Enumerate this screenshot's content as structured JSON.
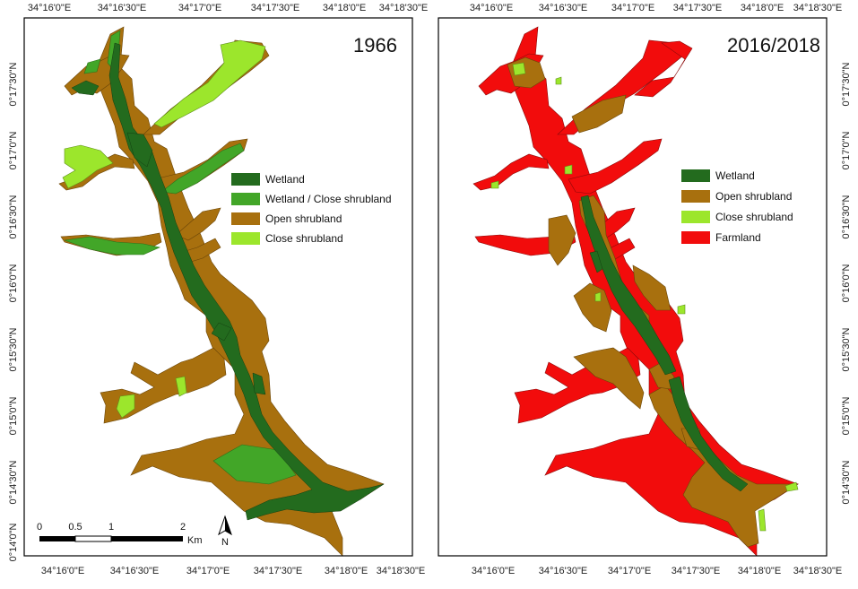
{
  "colors": {
    "wetland": "#236b1e",
    "wetland_close_shrubland": "#42a628",
    "open_shrubland": "#a8700e",
    "close_shrubland": "#9ce62c",
    "farmland": "#f20c0c",
    "frame": "#000000"
  },
  "left_map": {
    "year_label": "1966",
    "legend": [
      "Wetland",
      "Wetland / Close shrubland",
      "Open shrubland",
      "Close shrubland"
    ]
  },
  "right_map": {
    "year_label": "2016/2018",
    "legend": [
      "Wetland",
      "Open shrubland",
      "Close shrubland",
      "Farmland"
    ]
  },
  "axes": {
    "longitude_ticks": [
      "34°16'0\"E",
      "34°16'30\"E",
      "34°17'0\"E",
      "34°17'30\"E",
      "34°18'0\"E",
      "34°18'30\"E"
    ],
    "latitude_ticks": [
      "0°17'30\"N",
      "0°17'0\"N",
      "0°16'30\"N",
      "0°16'0\"N",
      "0°15'30\"N",
      "0°15'0\"N",
      "0°14'30\"N",
      "0°14'0\"N"
    ]
  },
  "scale_bar": {
    "labels": [
      "0",
      "0.5",
      "1",
      "2"
    ],
    "unit": "Km"
  },
  "north_arrow": {
    "label": "N"
  }
}
